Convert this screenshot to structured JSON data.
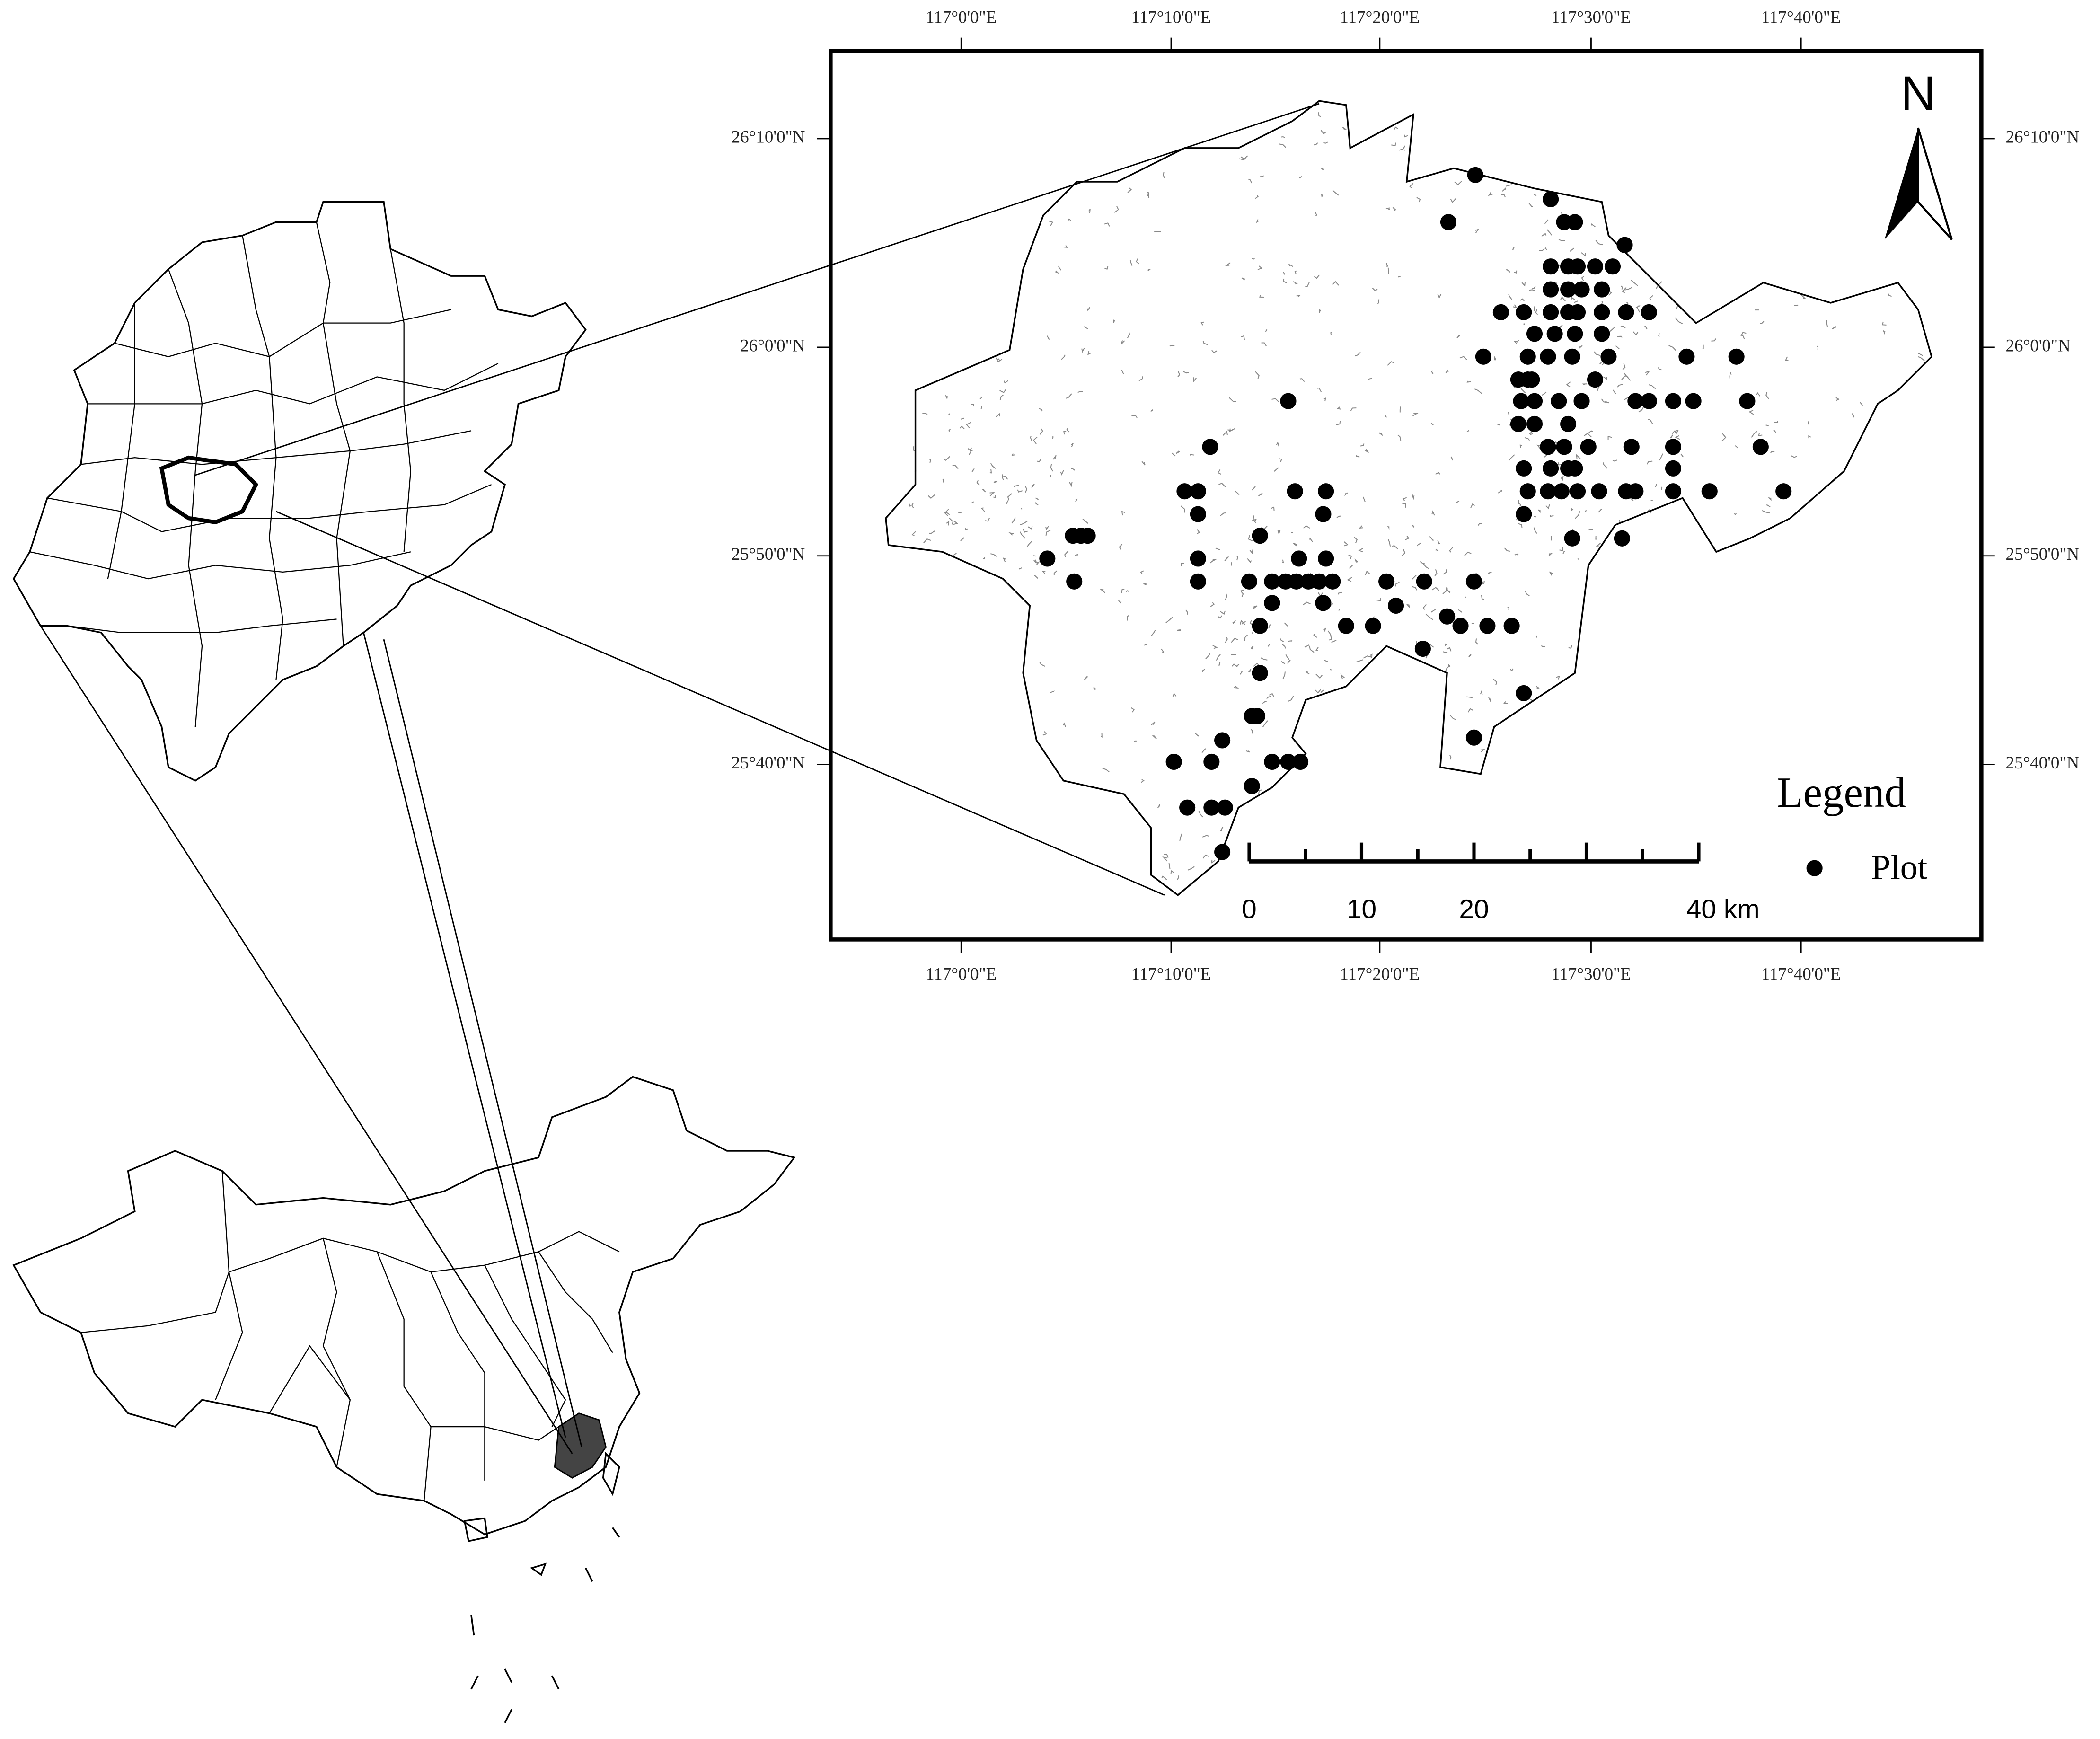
{
  "map": {
    "longitude_labels": [
      "117°0'0\"E",
      "117°10'0\"E",
      "117°20'0\"E",
      "117°30'0\"E",
      "117°40'0\"E"
    ],
    "latitude_labels": [
      "26°10'0\"N",
      "26°0'0\"N",
      "25°50'0\"N",
      "25°40'0\"N"
    ],
    "north": "N",
    "legend": {
      "title": "Legend",
      "item": "Plot"
    },
    "scale_bar": [
      "0",
      "10",
      "20",
      "40 km"
    ]
  }
}
